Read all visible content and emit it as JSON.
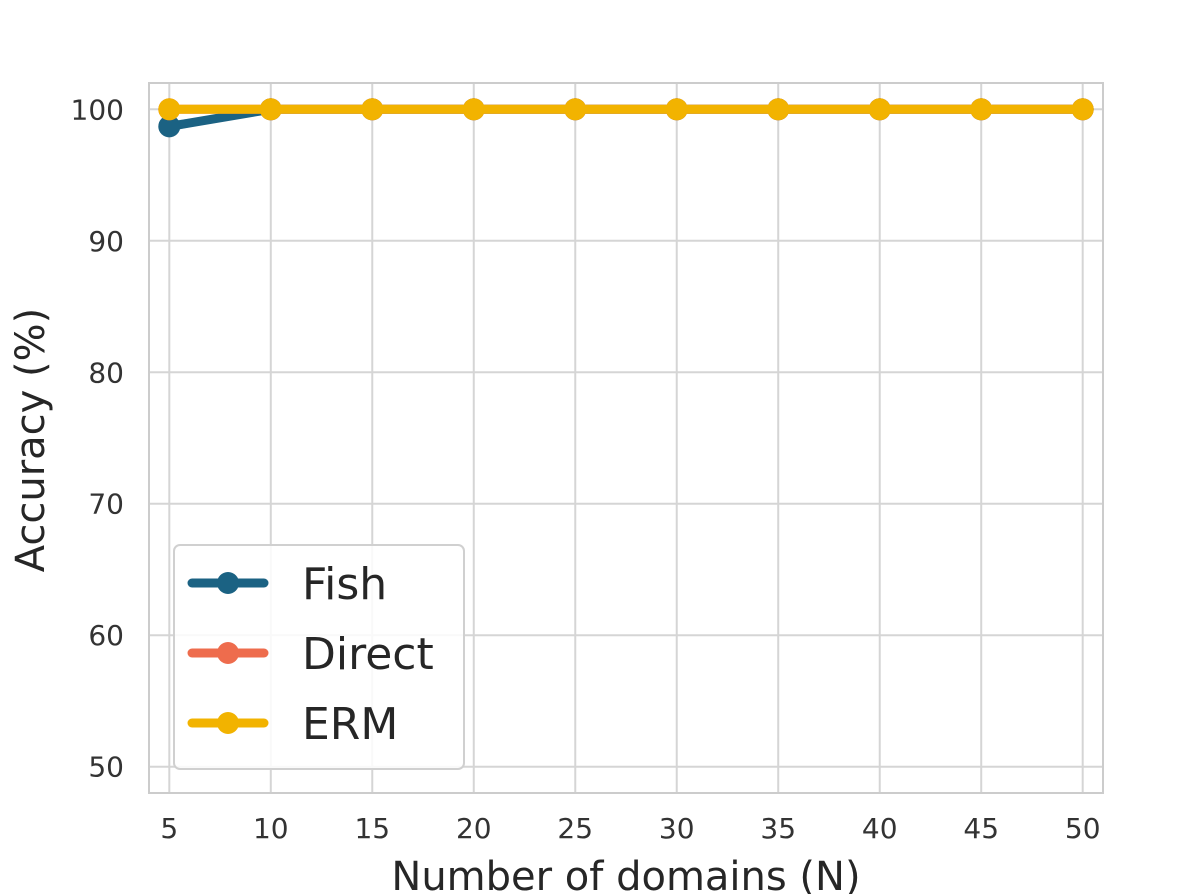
{
  "chart_data": {
    "type": "line",
    "xlabel": "Number of domains (N)",
    "ylabel": "Accuracy (%)",
    "x": [
      5,
      10,
      15,
      20,
      25,
      30,
      35,
      40,
      45,
      50
    ],
    "xlim": [
      4,
      51
    ],
    "ylim": [
      48,
      102
    ],
    "xticks": [
      "5",
      "10",
      "15",
      "20",
      "25",
      "30",
      "35",
      "40",
      "45",
      "50"
    ],
    "yticks": [
      "50",
      "60",
      "70",
      "80",
      "90",
      "100"
    ],
    "grid": true,
    "legend_position": "lower-left",
    "series": [
      {
        "name": "Fish",
        "color": "#1b6283",
        "values": [
          98.7,
          100,
          100,
          100,
          100,
          100,
          100,
          100,
          100,
          100
        ],
        "band_lower": [
          98.3,
          100,
          100,
          100,
          100,
          100,
          100,
          100,
          100,
          100
        ],
        "band_upper": [
          99.1,
          100,
          100,
          100,
          100,
          100,
          100,
          100,
          100,
          100
        ]
      },
      {
        "name": "Direct",
        "color": "#ee6c4d",
        "values": [
          100,
          100,
          100,
          100,
          100,
          100,
          100,
          100,
          100,
          100
        ]
      },
      {
        "name": "ERM",
        "color": "#f2b300",
        "values": [
          100,
          100,
          100,
          100,
          100,
          100,
          100,
          100,
          100,
          100
        ]
      }
    ]
  }
}
